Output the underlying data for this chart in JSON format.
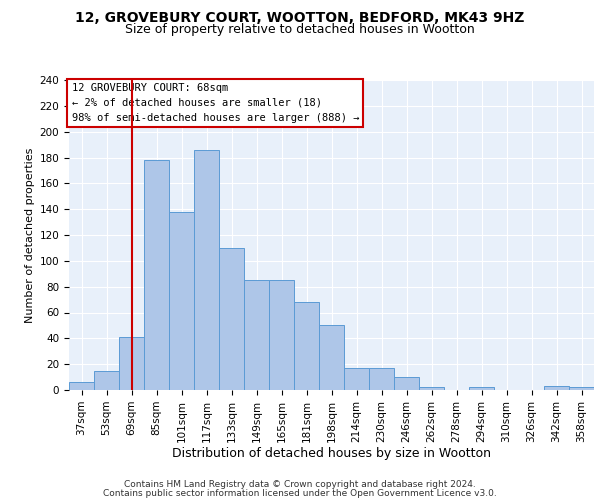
{
  "title1": "12, GROVEBURY COURT, WOOTTON, BEDFORD, MK43 9HZ",
  "title2": "Size of property relative to detached houses in Wootton",
  "xlabel": "Distribution of detached houses by size in Wootton",
  "ylabel": "Number of detached properties",
  "categories": [
    "37sqm",
    "53sqm",
    "69sqm",
    "85sqm",
    "101sqm",
    "117sqm",
    "133sqm",
    "149sqm",
    "165sqm",
    "181sqm",
    "198sqm",
    "214sqm",
    "230sqm",
    "246sqm",
    "262sqm",
    "278sqm",
    "294sqm",
    "310sqm",
    "326sqm",
    "342sqm",
    "358sqm"
  ],
  "values": [
    6,
    15,
    41,
    178,
    138,
    186,
    110,
    85,
    85,
    68,
    50,
    17,
    17,
    10,
    2,
    0,
    2,
    0,
    0,
    3,
    2
  ],
  "bar_color": "#aec6e8",
  "bar_edge_color": "#5b9bd5",
  "vline_x": 2,
  "vline_color": "#cc0000",
  "annotation_line1": "12 GROVEBURY COURT: 68sqm",
  "annotation_line2": "← 2% of detached houses are smaller (18)",
  "annotation_line3": "98% of semi-detached houses are larger (888) →",
  "annotation_box_color": "#ffffff",
  "annotation_box_edge": "#cc0000",
  "ylim": [
    0,
    240
  ],
  "yticks": [
    0,
    20,
    40,
    60,
    80,
    100,
    120,
    140,
    160,
    180,
    200,
    220,
    240
  ],
  "background_color": "#e8f0fa",
  "footer1": "Contains HM Land Registry data © Crown copyright and database right 2024.",
  "footer2": "Contains public sector information licensed under the Open Government Licence v3.0.",
  "title1_fontsize": 10,
  "title2_fontsize": 9,
  "xlabel_fontsize": 9,
  "ylabel_fontsize": 8,
  "tick_fontsize": 7.5,
  "annotation_fontsize": 7.5,
  "footer_fontsize": 6.5
}
